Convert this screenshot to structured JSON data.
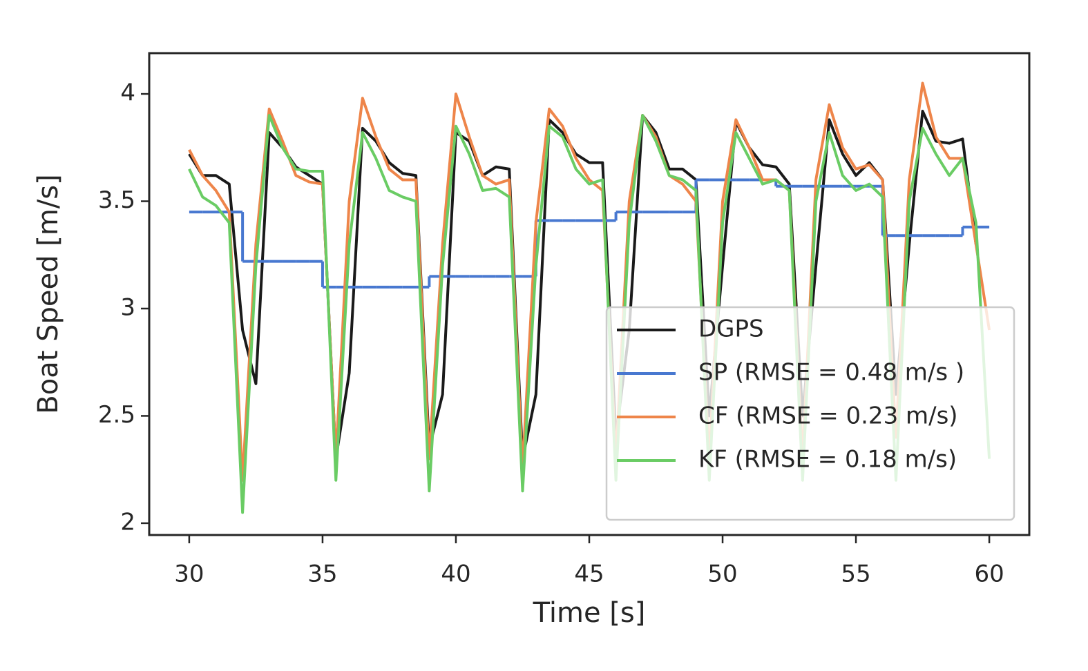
{
  "chart_data": {
    "type": "line",
    "xlabel": "Time [s]",
    "ylabel": "Boat Speed [m/s]",
    "x": [
      30,
      30.5,
      31,
      31.5,
      32,
      32.5,
      33,
      33.5,
      34,
      34.5,
      35,
      35.5,
      36,
      36.5,
      37,
      37.5,
      38,
      38.5,
      39,
      39.5,
      40,
      40.5,
      41,
      41.5,
      42,
      42.5,
      43,
      43.5,
      44,
      44.5,
      45,
      45.5,
      46,
      46.5,
      47,
      47.5,
      48,
      48.5,
      49,
      49.5,
      50,
      50.5,
      51,
      51.5,
      52,
      52.5,
      53,
      53.5,
      54,
      54.5,
      55,
      55.5,
      56,
      56.5,
      57,
      57.5,
      58,
      58.5,
      59,
      59.5,
      60
    ],
    "xlim": [
      28.5,
      61.5
    ],
    "xticks": [
      30,
      35,
      40,
      45,
      50,
      55,
      60
    ],
    "ylim": [
      1.945,
      4.19
    ],
    "yticks": [
      2.0,
      2.5,
      3.0,
      3.5,
      4.0
    ],
    "legend": "lower right",
    "series": [
      {
        "name": "DGPS",
        "color": "#1a1a1a",
        "values": [
          3.72,
          3.62,
          3.62,
          3.58,
          2.9,
          2.65,
          3.82,
          3.75,
          3.66,
          3.62,
          3.58,
          2.3,
          2.7,
          3.84,
          3.78,
          3.68,
          3.63,
          3.62,
          2.35,
          2.6,
          3.82,
          3.78,
          3.62,
          3.66,
          3.65,
          2.3,
          2.6,
          3.88,
          3.82,
          3.72,
          3.68,
          3.68,
          2.4,
          2.9,
          3.9,
          3.82,
          3.65,
          3.65,
          3.6,
          2.5,
          3.2,
          3.87,
          3.75,
          3.67,
          3.66,
          3.58,
          2.5,
          3.2,
          3.88,
          3.72,
          3.62,
          3.68,
          3.6,
          2.6,
          3.3,
          3.92,
          3.78,
          3.77,
          3.79,
          3.3,
          null
        ]
      },
      {
        "name": "SP (RMSE = 0.48 m/s )",
        "color": "#4878d0",
        "drawstyle": "steps-post",
        "values": [
          3.45,
          3.45,
          3.45,
          3.45,
          3.22,
          3.22,
          3.22,
          3.22,
          3.22,
          3.22,
          3.1,
          3.1,
          3.1,
          3.1,
          3.1,
          3.1,
          3.1,
          3.1,
          3.15,
          3.15,
          3.15,
          3.15,
          3.15,
          3.15,
          3.15,
          3.15,
          3.41,
          3.41,
          3.41,
          3.41,
          3.41,
          3.41,
          3.45,
          3.45,
          3.45,
          3.45,
          3.45,
          3.45,
          3.6,
          3.6,
          3.6,
          3.6,
          3.6,
          3.6,
          3.57,
          3.57,
          3.57,
          3.57,
          3.57,
          3.57,
          3.57,
          3.57,
          3.34,
          3.34,
          3.34,
          3.34,
          3.34,
          3.34,
          3.38,
          3.38,
          3.38
        ]
      },
      {
        "name": "CF (RMSE = 0.23 m/s)",
        "color": "#ee854a",
        "values": [
          3.74,
          3.62,
          3.55,
          3.45,
          2.2,
          3.3,
          3.93,
          3.78,
          3.62,
          3.59,
          3.58,
          2.3,
          3.5,
          3.98,
          3.8,
          3.65,
          3.6,
          3.6,
          2.3,
          3.3,
          4.0,
          3.8,
          3.62,
          3.58,
          3.6,
          2.25,
          3.4,
          3.93,
          3.85,
          3.7,
          3.6,
          3.55,
          2.3,
          3.5,
          3.9,
          3.8,
          3.62,
          3.58,
          3.5,
          2.3,
          3.5,
          3.88,
          3.75,
          3.6,
          3.6,
          3.55,
          2.3,
          3.6,
          3.95,
          3.75,
          3.65,
          3.67,
          3.6,
          2.4,
          3.6,
          4.05,
          3.8,
          3.7,
          3.7,
          3.3,
          2.9
        ]
      },
      {
        "name": "KF (RMSE = 0.18 m/s)",
        "color": "#6acc64",
        "values": [
          3.65,
          3.52,
          3.48,
          3.4,
          2.05,
          3.2,
          3.9,
          3.75,
          3.65,
          3.64,
          3.64,
          2.2,
          3.3,
          3.82,
          3.7,
          3.55,
          3.52,
          3.5,
          2.15,
          3.2,
          3.85,
          3.72,
          3.55,
          3.56,
          3.52,
          2.15,
          3.2,
          3.85,
          3.8,
          3.65,
          3.58,
          3.6,
          2.2,
          3.4,
          3.9,
          3.78,
          3.62,
          3.6,
          3.55,
          2.2,
          3.4,
          3.82,
          3.7,
          3.58,
          3.6,
          3.55,
          2.2,
          3.5,
          3.82,
          3.62,
          3.55,
          3.58,
          3.52,
          2.2,
          3.5,
          3.84,
          3.72,
          3.62,
          3.7,
          3.4,
          2.3
        ]
      }
    ]
  }
}
